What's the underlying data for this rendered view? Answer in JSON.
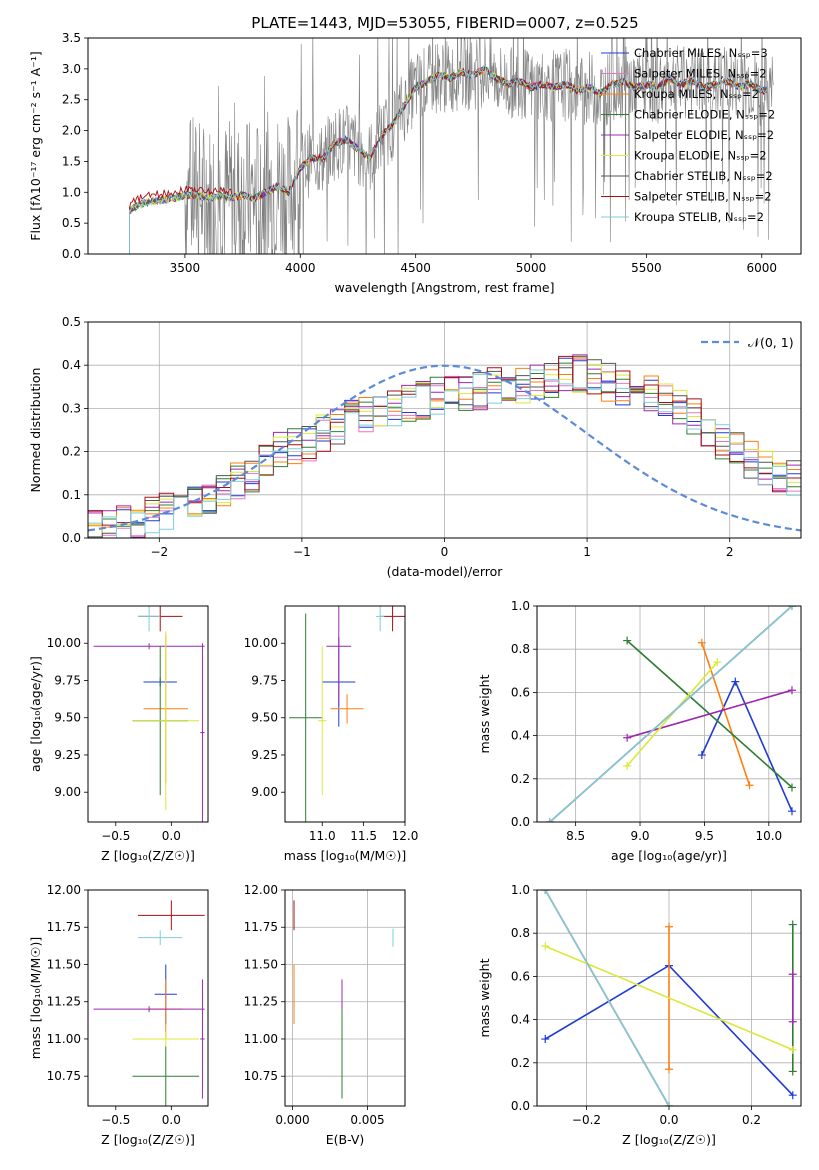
{
  "figure_title": "PLATE=1443, MJD=53055, FIBERID=0007, z=0.525",
  "series_colors": [
    "#1f3bd6",
    "#e377c2",
    "#ff7f0e",
    "#2e7d32",
    "#9c27b0",
    "#dce83a",
    "#555555",
    "#a50f15",
    "#7fcdda"
  ],
  "chart_data": [
    {
      "id": "spectrum",
      "type": "line",
      "xlabel": "wavelength [Angstrom, rest frame]",
      "ylabel": "Flux [fλ10⁻¹⁷ erg cm⁻² s⁻¹ A⁻¹]",
      "xlim": [
        3080,
        6170
      ],
      "ylim": [
        0,
        3.5
      ],
      "xticks": [
        "3500",
        "4000",
        "4500",
        "5000",
        "5500",
        "6000"
      ],
      "yticks": [
        "0.0",
        "0.5",
        "1.0",
        "1.5",
        "2.0",
        "2.5",
        "3.0",
        "3.5"
      ],
      "legend": "top-right",
      "legend_entries": [
        {
          "label": "Chabrier MILES, N_SSP=3",
          "color": "#1f3bd6"
        },
        {
          "label": "Salpeter MILES, N_SSP=2",
          "color": "#e377c2"
        },
        {
          "label": "Kroupa MILES, N_SSP=2",
          "color": "#ff7f0e"
        },
        {
          "label": "Chabrier ELODIE, N_SSP=2",
          "color": "#2e7d32"
        },
        {
          "label": "Salpeter ELODIE, N_SSP=2",
          "color": "#9c27b0"
        },
        {
          "label": "Kroupa ELODIE, N_SSP=2",
          "color": "#dce83a"
        },
        {
          "label": "Chabrier STELIB, N_SSP=2",
          "color": "#555555"
        },
        {
          "label": "Salpeter STELIB, N_SSP=2",
          "color": "#a50f15"
        },
        {
          "label": "Kroupa STELIB, N_SSP=2",
          "color": "#7fcdda"
        }
      ],
      "model_curve": {
        "x": [
          3260,
          3300,
          3350,
          3400,
          3450,
          3500,
          3550,
          3600,
          3650,
          3700,
          3750,
          3800,
          3850,
          3900,
          3950,
          4000,
          4050,
          4100,
          4150,
          4200,
          4250,
          4300,
          4350,
          4400,
          4450,
          4500,
          4550,
          4600,
          4650,
          4700,
          4750,
          4800,
          4850,
          4900,
          4950,
          5000,
          5050,
          5100,
          5150,
          5200,
          5250,
          5300,
          5350,
          5400,
          5450,
          5500,
          5550,
          5600,
          5650,
          5700,
          5750,
          5800,
          5850,
          5900,
          5950,
          6000
        ],
        "y": [
          0.7,
          0.8,
          0.85,
          0.88,
          0.9,
          0.95,
          0.95,
          0.9,
          0.95,
          0.92,
          0.95,
          0.9,
          1.0,
          1.1,
          1.0,
          1.4,
          1.55,
          1.55,
          1.8,
          1.85,
          1.7,
          1.55,
          1.9,
          2.1,
          2.4,
          2.7,
          2.8,
          2.9,
          2.85,
          2.95,
          2.9,
          3.0,
          2.85,
          2.75,
          2.8,
          2.7,
          2.75,
          2.7,
          2.75,
          2.65,
          2.7,
          2.6,
          2.75,
          2.8,
          2.7,
          2.75,
          2.7,
          2.85,
          2.75,
          2.8,
          2.7,
          2.75,
          2.8,
          2.7,
          2.75,
          2.65
        ]
      },
      "observed_flux": "noisy grey spectrum between 3500 and 6050 Angstrom"
    },
    {
      "id": "residuals",
      "type": "histogram",
      "xlabel": "(data-model)/error",
      "ylabel": "Normed distribution",
      "xlim": [
        -2.5,
        2.5
      ],
      "ylim": [
        0,
        0.5
      ],
      "xticks": [
        "−2",
        "−1",
        "0",
        "1",
        "2"
      ],
      "yticks": [
        "0.0",
        "0.1",
        "0.2",
        "0.3",
        "0.4",
        "0.5"
      ],
      "legend": "top-right",
      "legend_entries": [
        {
          "label": "𝒩(0, 1)",
          "color": "#5b8bd9",
          "style": "dashed"
        }
      ],
      "bin_edges_step": 0.1,
      "base_distribution": [
        0.02,
        0.02,
        0.03,
        0.04,
        0.05,
        0.06,
        0.07,
        0.08,
        0.1,
        0.11,
        0.13,
        0.15,
        0.18,
        0.2,
        0.21,
        0.22,
        0.24,
        0.26,
        0.28,
        0.29,
        0.3,
        0.3,
        0.31,
        0.32,
        0.33,
        0.34,
        0.33,
        0.34,
        0.35,
        0.34,
        0.35,
        0.36,
        0.37,
        0.38,
        0.38,
        0.37,
        0.36,
        0.35,
        0.34,
        0.33,
        0.32,
        0.3,
        0.28,
        0.25,
        0.22,
        0.2,
        0.18,
        0.16,
        0.15,
        0.14,
        0.13,
        0.12,
        0.11,
        0.1,
        0.09,
        0.08,
        0.07,
        0.07,
        0.06,
        0.06
      ]
    },
    {
      "id": "age_vs_Z",
      "type": "errorbar",
      "xlabel": "Z [log₁₀(Z/Z☉)]",
      "ylabel": "age  [log₁₀(age/yr)]",
      "xlim": [
        -0.75,
        0.33
      ],
      "ylim": [
        8.8,
        10.25
      ],
      "xticks": [
        "−0.5",
        "0.0"
      ],
      "yticks": [
        "9.00",
        "9.25",
        "9.50",
        "9.75",
        "10.00"
      ],
      "points": [
        {
          "x": -0.1,
          "y": 9.74,
          "xerr": 0.15,
          "yerr": 0.03,
          "color": "#1f3bd6"
        },
        {
          "x": -0.05,
          "y": 9.56,
          "xerr": 0.2,
          "yerr": 0.5,
          "color": "#ff7f0e"
        },
        {
          "x": -0.1,
          "y": 9.48,
          "xerr": 0.25,
          "yerr": 0.5,
          "color": "#2e7d32"
        },
        {
          "x": -0.2,
          "y": 9.98,
          "xerr": 0.5,
          "yerr": 0.02,
          "color": "#9c27b0"
        },
        {
          "x": -0.05,
          "y": 9.48,
          "xerr": 0.3,
          "yerr": 0.6,
          "color": "#dce83a"
        },
        {
          "x": -0.1,
          "y": 10.18,
          "xerr": 0.2,
          "yerr": 0.1,
          "color": "#a50f15"
        },
        {
          "x": -0.2,
          "y": 10.18,
          "xerr": 0.1,
          "yerr": 0.1,
          "color": "#7fcdda"
        },
        {
          "x": 0.28,
          "y": 9.4,
          "xerr": 0.02,
          "yerr": 0.6,
          "color": "#9c27b0"
        }
      ]
    },
    {
      "id": "age_vs_mass",
      "type": "errorbar",
      "xlabel": "mass [log₁₀(M/M☉)]",
      "ylabel": "",
      "xlim": [
        10.55,
        12.0
      ],
      "ylim": [
        8.8,
        10.25
      ],
      "xticks": [
        "11.0",
        "11.5",
        "12.0"
      ],
      "yticks": [
        "9.00",
        "9.25",
        "9.50",
        "9.75",
        "10.00"
      ],
      "points": [
        {
          "x": 11.2,
          "y": 9.74,
          "xerr": 0.2,
          "yerr": 0.3,
          "color": "#1f3bd6"
        },
        {
          "x": 11.3,
          "y": 9.56,
          "xerr": 0.2,
          "yerr": 0.1,
          "color": "#ff7f0e"
        },
        {
          "x": 10.8,
          "y": 9.5,
          "xerr": 0.2,
          "yerr": 0.7,
          "color": "#2e7d32"
        },
        {
          "x": 11.2,
          "y": 9.98,
          "xerr": 0.15,
          "yerr": 0.4,
          "color": "#9c27b0"
        },
        {
          "x": 11.0,
          "y": 9.48,
          "xerr": 0.05,
          "yerr": 0.5,
          "color": "#dce83a"
        },
        {
          "x": 11.85,
          "y": 10.18,
          "xerr": 0.15,
          "yerr": 0.1,
          "color": "#a50f15"
        },
        {
          "x": 11.7,
          "y": 10.18,
          "xerr": 0.05,
          "yerr": 0.1,
          "color": "#7fcdda"
        }
      ]
    },
    {
      "id": "mass_weight_vs_age",
      "type": "line",
      "xlabel": "age  [log₁₀(age/yr)]",
      "ylabel": "mass weight",
      "xlim": [
        8.2,
        10.25
      ],
      "ylim": [
        0,
        1.0
      ],
      "xticks": [
        "8.5",
        "9.0",
        "9.5",
        "10.0"
      ],
      "yticks": [
        "0.0",
        "0.2",
        "0.4",
        "0.6",
        "0.8",
        "1.0"
      ],
      "grid": true,
      "series": [
        {
          "color": "#1f3bd6",
          "x": [
            9.48,
            9.74,
            10.18
          ],
          "y": [
            0.31,
            0.65,
            0.05
          ]
        },
        {
          "color": "#ff7f0e",
          "x": [
            9.48,
            9.85
          ],
          "y": [
            0.83,
            0.17
          ]
        },
        {
          "color": "#2e7d32",
          "x": [
            8.9,
            10.18
          ],
          "y": [
            0.84,
            0.16
          ]
        },
        {
          "color": "#9c27b0",
          "x": [
            8.9,
            10.18
          ],
          "y": [
            0.39,
            0.61
          ]
        },
        {
          "color": "#dce83a",
          "x": [
            8.9,
            9.6
          ],
          "y": [
            0.26,
            0.74
          ]
        },
        {
          "color": "#a50f15",
          "x": [
            8.3,
            10.18
          ],
          "y": [
            0.0,
            1.0
          ]
        },
        {
          "color": "#7fcdda",
          "x": [
            8.3,
            10.18
          ],
          "y": [
            0.0,
            1.0
          ]
        }
      ]
    },
    {
      "id": "mass_vs_Z",
      "type": "errorbar",
      "xlabel": "Z [log₁₀(Z/Z☉)]",
      "ylabel": "mass [log₁₀(M/M☉)]",
      "xlim": [
        -0.75,
        0.33
      ],
      "ylim": [
        10.55,
        12.0
      ],
      "xticks": [
        "−0.5",
        "0.0"
      ],
      "yticks": [
        "10.75",
        "11.00",
        "11.25",
        "11.50",
        "11.75",
        "12.00"
      ],
      "points": [
        {
          "x": -0.05,
          "y": 11.3,
          "xerr": 0.1,
          "yerr": 0.2,
          "color": "#1f3bd6"
        },
        {
          "x": -0.05,
          "y": 11.2,
          "xerr": 0.15,
          "yerr": 0.2,
          "color": "#ff7f0e"
        },
        {
          "x": -0.05,
          "y": 10.75,
          "xerr": 0.3,
          "yerr": 0.2,
          "color": "#2e7d32"
        },
        {
          "x": -0.2,
          "y": 11.2,
          "xerr": 0.5,
          "yerr": 0.02,
          "color": "#9c27b0"
        },
        {
          "x": -0.05,
          "y": 11.0,
          "xerr": 0.3,
          "yerr": 0.05,
          "color": "#dce83a"
        },
        {
          "x": 0.0,
          "y": 11.83,
          "xerr": 0.3,
          "yerr": 0.1,
          "color": "#a50f15"
        },
        {
          "x": -0.1,
          "y": 11.68,
          "xerr": 0.2,
          "yerr": 0.05,
          "color": "#7fcdda"
        },
        {
          "x": 0.28,
          "y": 11.0,
          "xerr": 0.02,
          "yerr": 0.4,
          "color": "#9c27b0"
        }
      ]
    },
    {
      "id": "mass_vs_ebv",
      "type": "errorbar",
      "xlabel": "E(B-V)",
      "ylabel": "",
      "xlim": [
        -0.0005,
        0.0075
      ],
      "ylim": [
        10.55,
        12.0
      ],
      "xticks": [
        "0.000",
        "0.005"
      ],
      "yticks": [
        "10.75",
        "11.00",
        "11.25",
        "11.50",
        "11.75",
        "12.00"
      ],
      "points": [
        {
          "x": 0.0001,
          "y": 11.83,
          "yerr": 0.1,
          "color": "#a50f15"
        },
        {
          "x": 0.0001,
          "y": 11.3,
          "yerr": 0.2,
          "color": "#ff7f0e"
        },
        {
          "x": 0.0033,
          "y": 11.3,
          "yerr": 0.1,
          "color": "#9c27b0"
        },
        {
          "x": 0.0033,
          "y": 10.9,
          "yerr": 0.3,
          "color": "#2e7d32"
        },
        {
          "x": 0.0067,
          "y": 11.68,
          "yerr": 0.06,
          "color": "#7fcdda"
        }
      ]
    },
    {
      "id": "mass_weight_vs_Z",
      "type": "line",
      "xlabel": "Z [log₁₀(Z/Z☉)]",
      "ylabel": "mass weight",
      "xlim": [
        -0.32,
        0.32
      ],
      "ylim": [
        0,
        1.0
      ],
      "xticks": [
        "−0.2",
        "0.0",
        "0.2"
      ],
      "yticks": [
        "0.0",
        "0.2",
        "0.4",
        "0.6",
        "0.8",
        "1.0"
      ],
      "grid": true,
      "series": [
        {
          "color": "#1f3bd6",
          "x": [
            -0.3,
            0.0,
            0.3
          ],
          "y": [
            0.31,
            0.65,
            0.05
          ]
        },
        {
          "color": "#ff7f0e",
          "x": [
            0.0,
            0.0
          ],
          "y": [
            0.17,
            0.83
          ]
        },
        {
          "color": "#2e7d32",
          "x": [
            0.3,
            0.3
          ],
          "y": [
            0.16,
            0.84
          ]
        },
        {
          "color": "#9c27b0",
          "x": [
            0.3,
            0.3
          ],
          "y": [
            0.39,
            0.61
          ]
        },
        {
          "color": "#dce83a",
          "x": [
            -0.3,
            0.3
          ],
          "y": [
            0.74,
            0.26
          ]
        },
        {
          "color": "#a50f15",
          "x": [
            -0.3,
            0.0
          ],
          "y": [
            1.0,
            0.0
          ]
        },
        {
          "color": "#7fcdda",
          "x": [
            -0.3,
            0.0
          ],
          "y": [
            1.0,
            0.0
          ]
        }
      ]
    }
  ]
}
